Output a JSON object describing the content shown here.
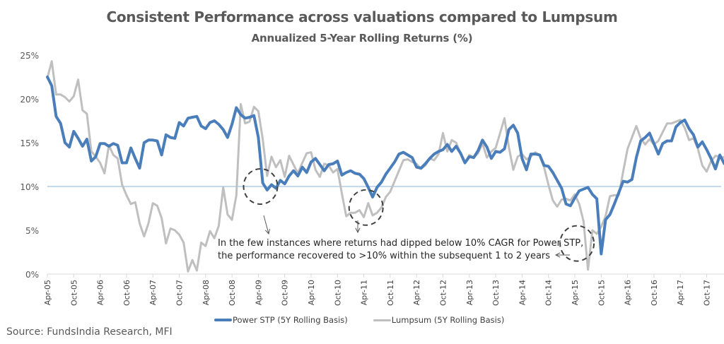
{
  "chart_data": {
    "type": "line",
    "title": "Consistent Performance across valuations compared to Lumpsum",
    "subtitle": "Annualized 5-Year Rolling Returns (%)",
    "xlabel": "",
    "ylabel": "",
    "ylim": [
      0,
      25
    ],
    "yticks": [
      0,
      5,
      10,
      15,
      20,
      25
    ],
    "ytick_labels": [
      "0%",
      "5%",
      "10%",
      "15%",
      "20%",
      "25%"
    ],
    "xtick_labels": [
      "Apr-05",
      "Oct-05",
      "Apr-06",
      "Oct-06",
      "Apr-07",
      "Oct-07",
      "Apr-08",
      "Oct-08",
      "Apr-09",
      "Oct-09",
      "Apr-10",
      "Oct-10",
      "Apr-11",
      "Oct-11",
      "Apr-12",
      "Oct-12",
      "Apr-13",
      "Oct-13",
      "Apr-14",
      "Oct-14",
      "Apr-15",
      "Oct-15",
      "Apr-16",
      "Oct-16",
      "Apr-17",
      "Oct-17"
    ],
    "x_start": "Apr-05",
    "x_frequency": "monthly",
    "reference_line": {
      "value": 10,
      "color": "#9dc3e6"
    },
    "legend_position": "bottom",
    "grid": false,
    "series": [
      {
        "name": "Power STP  (5Y Rolling Basis)",
        "color": "#4a7ebb",
        "values": [
          22.5,
          21.5,
          18,
          17.2,
          15,
          14.5,
          16.3,
          15.5,
          14.6,
          15.4,
          12.9,
          13.4,
          14.9,
          14.9,
          14.6,
          14.9,
          14.7,
          12.7,
          12.7,
          14.4,
          13.2,
          12.1,
          15.0,
          15.3,
          15.3,
          15.2,
          13.6,
          15.9,
          15.6,
          15.5,
          17.3,
          16.9,
          17.8,
          17.9,
          18.0,
          16.9,
          16.6,
          17.3,
          17.5,
          17.1,
          16.5,
          15.6,
          17.1,
          19.0,
          18.2,
          17.8,
          17.9,
          18.1,
          15.6,
          10.4,
          9.6,
          10.2,
          9.8,
          10.7,
          10.3,
          11.2,
          11.8,
          11.2,
          12.2,
          11.6,
          12.8,
          13.2,
          12.5,
          11.8,
          12.5,
          12.6,
          12.9,
          11.3,
          11.6,
          11.8,
          11.5,
          11.4,
          10.9,
          9.9,
          8.8,
          9.9,
          10.5,
          11.4,
          12.1,
          12.8,
          13.7,
          13.9,
          13.6,
          13.3,
          12.2,
          12.1,
          12.6,
          13.2,
          13.7,
          14.0,
          14.2,
          14.8,
          14.0,
          14.6,
          13.8,
          12.7,
          13.4,
          13.3,
          14.1,
          15.3,
          14.5,
          13.2,
          14.0,
          13.9,
          14.3,
          16.5,
          17.0,
          16.1,
          13.2,
          11.9,
          13.7,
          13.7,
          13.6,
          12.4,
          12.3,
          11.6,
          10.7,
          9.8,
          8.0,
          7.8,
          8.7,
          9.5,
          9.7,
          9.9,
          9.1,
          8.6,
          2.3,
          6.2,
          6.8,
          8.0,
          9.3,
          10.6,
          10.5,
          10.8,
          13.3,
          15.2,
          15.6,
          16.1,
          14.9,
          13.7,
          14.9,
          15.2,
          15.2,
          16.8,
          17.3,
          17.6,
          16.6,
          15.9,
          14.5,
          15.1,
          14.2,
          13.2,
          12.0,
          13.6,
          12.6,
          12.7,
          12.2,
          13.2,
          13.4,
          14.2
        ]
      },
      {
        "name": "Lumpsum (5Y Rolling Basis)",
        "color": "#bfbfbf",
        "values": [
          22.4,
          24.3,
          20.5,
          20.5,
          20.2,
          19.7,
          20.3,
          22.2,
          18.7,
          18.3,
          14.0,
          13.4,
          12.7,
          11.5,
          14.7,
          13.6,
          13.2,
          10.2,
          9.0,
          8.0,
          8.2,
          5.8,
          4.3,
          5.8,
          8.1,
          7.8,
          6.4,
          3.5,
          5.2,
          5.0,
          4.5,
          3.6,
          0.3,
          1.6,
          0.4,
          3.6,
          3.2,
          4.9,
          4.1,
          5.5,
          9.9,
          6.8,
          6.2,
          9.0,
          19.4,
          17.2,
          17.4,
          19.1,
          18.6,
          15.4,
          11.2,
          13.4,
          12.2,
          13.0,
          11.1,
          13.5,
          12.5,
          11.5,
          12.7,
          13.8,
          13.9,
          11.9,
          11.1,
          12.6,
          12.4,
          11.6,
          12.0,
          9.2,
          6.6,
          7.0,
          7.0,
          7.3,
          6.5,
          8.1,
          6.7,
          7.0,
          7.6,
          8.8,
          9.4,
          10.6,
          11.8,
          13.0,
          13.1,
          12.8,
          12.6,
          12.0,
          12.4,
          13.2,
          13.0,
          13.7,
          16.1,
          14.0,
          15.3,
          15.0,
          13.8,
          12.7,
          13.6,
          13.3,
          13.8,
          14.9,
          13.3,
          14.0,
          14.4,
          16.1,
          17.8,
          14.5,
          11.9,
          13.4,
          13.7,
          13.1,
          13.4,
          13.9,
          13.6,
          12.2,
          10.2,
          8.4,
          7.7,
          8.5,
          8.6,
          8.4,
          9.1,
          8.0,
          6.0,
          0.5,
          5.0,
          4.6,
          5.4,
          6.6,
          8.9,
          9.0,
          9.0,
          11.7,
          14.3,
          15.6,
          16.9,
          15.5,
          14.8,
          15.4,
          14.8,
          15.2,
          16.2,
          17.2,
          17.2,
          17.4,
          17.6,
          16.7,
          15.3,
          15.5,
          14.3,
          12.4,
          11.7,
          12.9,
          13.5,
          13.4,
          13.3,
          14.6
        ]
      }
    ],
    "annotations": [
      {
        "type": "dashed-circle",
        "near": "Apr-09"
      },
      {
        "type": "dashed-circle",
        "near": "Mar-11"
      },
      {
        "type": "dashed-circle",
        "near": "Apr-15"
      },
      {
        "type": "text",
        "text": "In the few instances where returns had dipped below 10% CAGR for Power STP, the performance recovered to >10% within the subsequent 1 to 2 years"
      }
    ]
  },
  "header": {
    "title": "Consistent Performance across valuations compared to Lumpsum",
    "subtitle": "Annualized 5-Year Rolling Returns (%)"
  },
  "annotation": {
    "line1": "In the few instances where returns had dipped below 10% CAGR for Power STP,",
    "line2": "the performance recovered to >10% within the subsequent 1 to 2 years"
  },
  "legend": {
    "items": [
      {
        "label": "Power STP  (5Y Rolling Basis)",
        "color": "#4a7ebb"
      },
      {
        "label": "Lumpsum (5Y Rolling Basis)",
        "color": "#bfbfbf"
      }
    ]
  },
  "footer": {
    "source": "Source: FundsIndia Research, MFI"
  }
}
